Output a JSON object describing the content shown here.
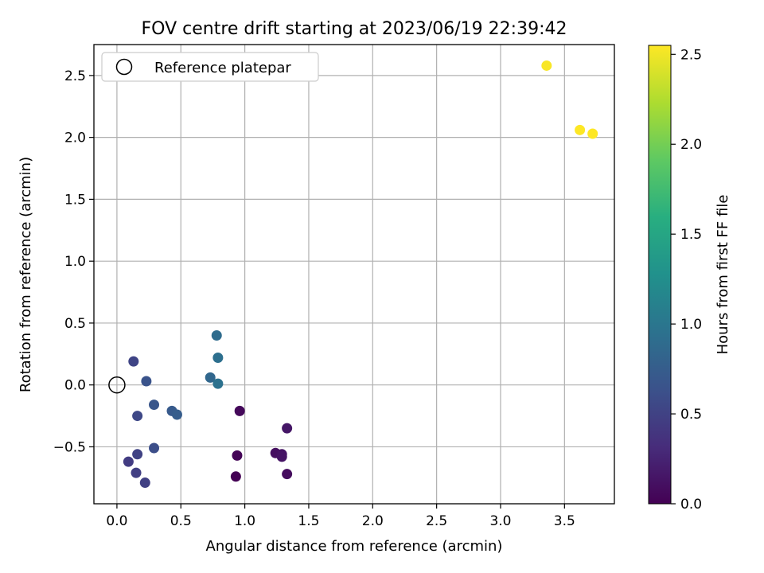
{
  "chart_data": {
    "type": "scatter",
    "title": "FOV centre drift starting at 2023/06/19 22:39:42",
    "xlabel": "Angular distance from reference (arcmin)",
    "ylabel": "Rotation from reference (arcmin)",
    "xlim": [
      -0.18,
      3.89
    ],
    "ylim": [
      -0.96,
      2.75
    ],
    "xticks": [
      0.0,
      0.5,
      1.0,
      1.5,
      2.0,
      2.5,
      3.0,
      3.5
    ],
    "yticks": [
      -0.5,
      0.0,
      0.5,
      1.0,
      1.5,
      2.0,
      2.5
    ],
    "xtick_labels": [
      "0.0",
      "0.5",
      "1.0",
      "1.5",
      "2.0",
      "2.5",
      "3.0",
      "3.5"
    ],
    "ytick_labels": [
      "−0.5",
      "0.0",
      "0.5",
      "1.0",
      "1.5",
      "2.0",
      "2.5"
    ],
    "grid": true,
    "legend": {
      "position": "top-left",
      "entries": [
        "Reference platepar"
      ]
    },
    "reference_point": {
      "x": 0.0,
      "y": 0.0,
      "label": "Reference platepar"
    },
    "colorbar": {
      "label": "Hours from first FF file",
      "range": [
        0.0,
        2.55
      ],
      "ticks": [
        0.0,
        0.5,
        1.0,
        1.5,
        2.0,
        2.5
      ],
      "tick_labels": [
        "0.0",
        "0.5",
        "1.0",
        "1.5",
        "2.0",
        "2.5"
      ],
      "colormap": "viridis"
    },
    "points": [
      {
        "x": 0.93,
        "y": -0.74,
        "hours": 0.0
      },
      {
        "x": 0.94,
        "y": -0.57,
        "hours": 0.02
      },
      {
        "x": 0.96,
        "y": -0.21,
        "hours": 0.05
      },
      {
        "x": 1.24,
        "y": -0.55,
        "hours": 0.1
      },
      {
        "x": 1.29,
        "y": -0.56,
        "hours": 0.12
      },
      {
        "x": 1.29,
        "y": -0.58,
        "hours": 0.13
      },
      {
        "x": 1.33,
        "y": -0.72,
        "hours": 0.08
      },
      {
        "x": 1.33,
        "y": -0.35,
        "hours": 0.15
      },
      {
        "x": 0.09,
        "y": -0.62,
        "hours": 0.45
      },
      {
        "x": 0.15,
        "y": -0.71,
        "hours": 0.47
      },
      {
        "x": 0.22,
        "y": -0.79,
        "hours": 0.48
      },
      {
        "x": 0.16,
        "y": -0.56,
        "hours": 0.5
      },
      {
        "x": 0.16,
        "y": -0.25,
        "hours": 0.55
      },
      {
        "x": 0.13,
        "y": 0.19,
        "hours": 0.52
      },
      {
        "x": 0.29,
        "y": -0.51,
        "hours": 0.6
      },
      {
        "x": 0.23,
        "y": 0.03,
        "hours": 0.65
      },
      {
        "x": 0.29,
        "y": -0.16,
        "hours": 0.68
      },
      {
        "x": 0.43,
        "y": -0.21,
        "hours": 0.72
      },
      {
        "x": 0.47,
        "y": -0.24,
        "hours": 0.75
      },
      {
        "x": 0.73,
        "y": 0.06,
        "hours": 0.85
      },
      {
        "x": 0.78,
        "y": 0.4,
        "hours": 0.9
      },
      {
        "x": 0.79,
        "y": 0.22,
        "hours": 0.93
      },
      {
        "x": 0.79,
        "y": 0.01,
        "hours": 0.95
      },
      {
        "x": 3.36,
        "y": 2.58,
        "hours": 2.53
      },
      {
        "x": 3.62,
        "y": 2.06,
        "hours": 2.55
      },
      {
        "x": 3.72,
        "y": 2.03,
        "hours": 2.55
      }
    ]
  }
}
